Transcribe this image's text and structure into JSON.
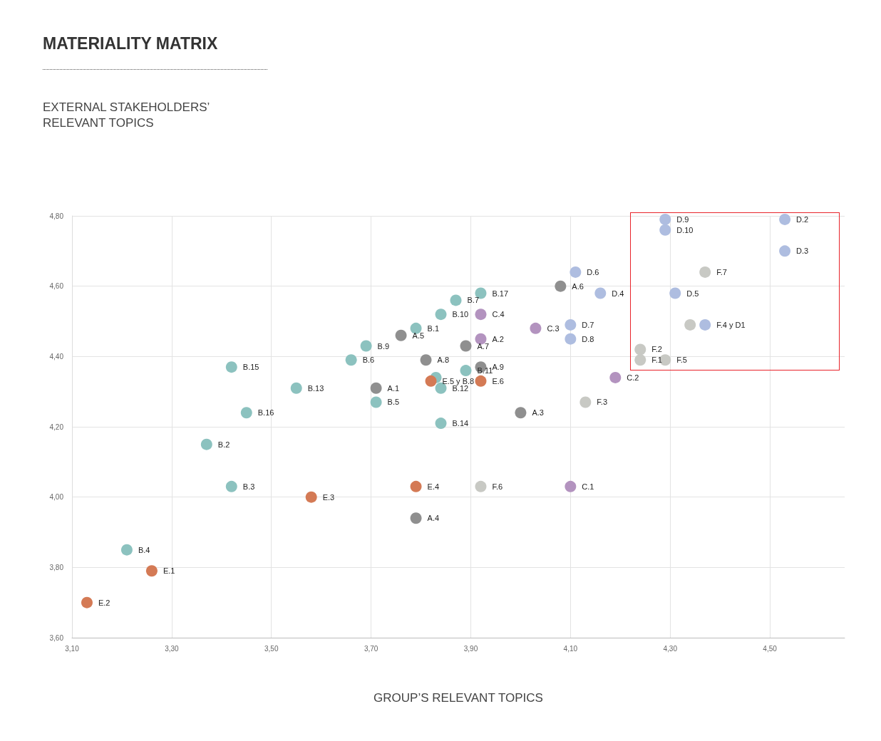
{
  "chart_data": {
    "type": "scatter",
    "title": "MATERIALITY MATRIX",
    "annotations": [
      "EXTERNAL STAKEHOLDERS’ RELEVANT TOPICS"
    ],
    "xlabel": "GROUP’S RELEVANT TOPICS",
    "xlim": [
      3.1,
      4.65
    ],
    "xticks": [
      {
        "value": 3.1,
        "label": "3,10"
      },
      {
        "value": 3.3,
        "label": "3,30"
      },
      {
        "value": 3.5,
        "label": "3,50"
      },
      {
        "value": 3.7,
        "label": "3,70"
      },
      {
        "value": 3.9,
        "label": "3,90"
      },
      {
        "value": 4.1,
        "label": "4,10"
      },
      {
        "value": 4.3,
        "label": "4,30"
      },
      {
        "value": 4.5,
        "label": "4,50"
      }
    ],
    "ylim": [
      3.6,
      4.8
    ],
    "yticks": [
      {
        "value": 3.6,
        "label": "3,60"
      },
      {
        "value": 3.8,
        "label": "3,80"
      },
      {
        "value": 4.0,
        "label": "4,00"
      },
      {
        "value": 4.2,
        "label": "4,20"
      },
      {
        "value": 4.4,
        "label": "4,40"
      },
      {
        "value": 4.6,
        "label": "4,60"
      },
      {
        "value": 4.8,
        "label": "4,80"
      }
    ],
    "grid": true,
    "marker": "circle",
    "series": [
      {
        "color": "#8f8f8f",
        "x": [
          3.71,
          4.0,
          3.79,
          3.76,
          4.08,
          3.89,
          3.81,
          3.92
        ],
        "values": [
          4.31,
          4.24,
          3.94,
          4.46,
          4.6,
          4.43,
          4.39,
          4.37
        ],
        "value_labels": [
          "A.1",
          "A.3",
          "A.4",
          "A.5",
          "A.6",
          "A.7",
          "A.8",
          "A.9"
        ]
      },
      {
        "color": "#8cc2bf",
        "x": [
          3.79,
          3.37,
          3.42,
          3.21,
          3.71,
          3.66,
          3.87,
          3.83,
          3.69,
          3.84,
          3.89,
          3.84,
          3.55,
          3.84,
          3.42,
          3.45,
          3.92
        ],
        "values": [
          4.48,
          4.15,
          4.03,
          3.85,
          4.27,
          4.39,
          4.56,
          4.34,
          4.43,
          4.52,
          4.36,
          4.31,
          4.31,
          4.21,
          4.37,
          4.24,
          4.58
        ],
        "value_labels": [
          "B.1",
          "B.2",
          "B.3",
          "B.4",
          "B.5",
          "B.6",
          "B.7",
          null,
          "B.9",
          "B.10",
          "B.11",
          "B.12",
          "B.13",
          "B.14",
          "B.15",
          "B.16",
          "B.17"
        ]
      },
      {
        "color": "#b393bf",
        "x": [
          3.92,
          4.1,
          4.19,
          4.03,
          3.92
        ],
        "values": [
          4.45,
          4.03,
          4.34,
          4.48,
          4.52
        ],
        "value_labels": [
          "A.2",
          "C.1",
          "C.2",
          "C.3",
          "C.4"
        ]
      },
      {
        "color": "#aebde0",
        "x": [
          4.37,
          4.53,
          4.53,
          4.16,
          4.31,
          4.11,
          4.1,
          4.1,
          4.29,
          4.29
        ],
        "values": [
          4.49,
          4.79,
          4.7,
          4.58,
          4.58,
          4.64,
          4.49,
          4.45,
          4.79,
          4.76
        ],
        "value_labels": [
          "F.4 y D1",
          "D.2",
          "D.3",
          "D.4",
          "D.5",
          "D.6",
          "D.7",
          "D.8",
          "D.9",
          "D.10"
        ]
      },
      {
        "color": "#d47a55",
        "x": [
          3.26,
          3.13,
          3.58,
          3.79,
          3.82,
          3.92
        ],
        "values": [
          3.79,
          3.7,
          4.0,
          4.03,
          4.33,
          4.33
        ],
        "value_labels": [
          "E.1",
          "E.2",
          "E.3",
          "E.4",
          "E.5 y B.8",
          "E.6"
        ]
      },
      {
        "color": "#c8c9c4",
        "x": [
          4.24,
          4.24,
          4.13,
          4.34,
          4.29,
          3.92,
          4.37
        ],
        "values": [
          4.39,
          4.42,
          4.27,
          4.49,
          4.39,
          4.03,
          4.64
        ],
        "value_labels": [
          "F.1",
          "F.2",
          "F.3",
          null,
          "F.5",
          "F.6",
          "F.7"
        ]
      }
    ]
  }
}
